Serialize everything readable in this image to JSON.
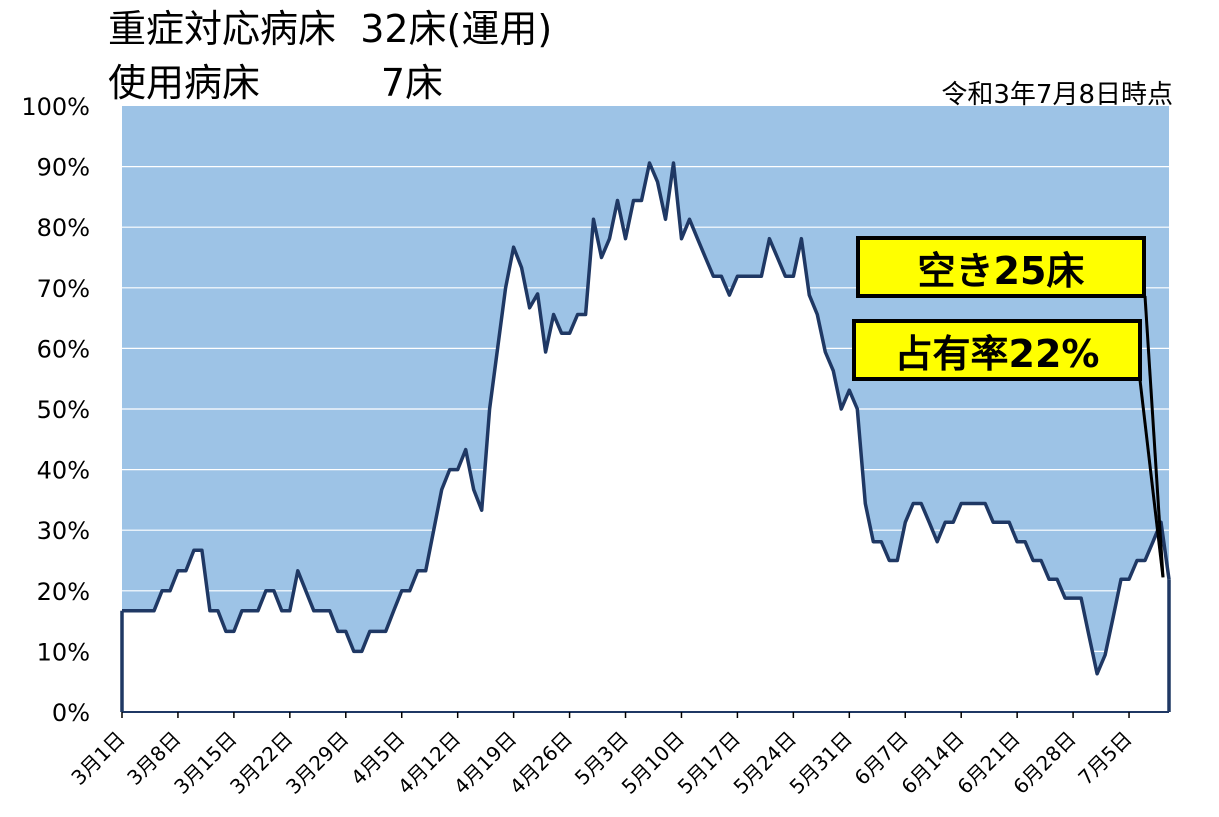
{
  "header": {
    "line1_label": "重症対応病床",
    "line1_value": "32床(運用)",
    "line2_label": "使用病床",
    "line2_value": "7床",
    "as_of": "令和3年7月8日時点"
  },
  "callouts": {
    "vacant": "空き25床",
    "occupancy": "占有率22%"
  },
  "colors": {
    "area_fill": "#9dc3e6",
    "line": "#1f3864",
    "gridline": "#ffffff",
    "callout_bg": "#ffff00"
  },
  "chart_data": {
    "type": "area",
    "title": "",
    "xlabel": "",
    "ylabel": "",
    "ylim": [
      0,
      100
    ],
    "y_unit": "%",
    "y_ticks": [
      "0%",
      "10%",
      "20%",
      "30%",
      "40%",
      "50%",
      "60%",
      "70%",
      "80%",
      "90%",
      "100%"
    ],
    "x_tick_labels": [
      "3月1日",
      "3月8日",
      "3月15日",
      "3月22日",
      "3月29日",
      "4月5日",
      "4月12日",
      "4月19日",
      "4月26日",
      "5月3日",
      "5月10日",
      "5月17日",
      "5月24日",
      "5月31日",
      "6月7日",
      "6月14日",
      "6月21日",
      "6月28日",
      "7月5日"
    ],
    "grid": true,
    "series": [
      {
        "values": [
          16.7,
          16.7,
          16.7,
          16.7,
          16.7,
          20,
          20,
          23.3,
          23.3,
          26.7,
          26.7,
          16.7,
          16.7,
          13.3,
          13.3,
          16.7,
          16.7,
          16.7,
          20,
          20,
          16.7,
          16.7,
          23.3,
          20,
          16.7,
          16.7,
          16.7,
          13.3,
          13.3,
          10,
          10,
          13.3,
          13.3,
          13.3,
          16.7,
          20,
          20,
          23.3,
          23.3,
          30,
          36.7,
          40,
          40,
          43.3,
          36.7,
          33.3,
          50,
          60,
          70,
          76.7,
          73.3,
          66.7,
          69,
          59.4,
          65.6,
          62.5,
          62.5,
          65.6,
          65.6,
          81.3,
          75,
          78.1,
          84.4,
          78.1,
          84.4,
          84.4,
          90.6,
          87.5,
          81.3,
          90.6,
          78.1,
          81.3,
          78.1,
          75,
          71.9,
          71.9,
          68.8,
          71.9,
          71.9,
          71.9,
          71.9,
          78.1,
          75,
          71.9,
          71.9,
          78.1,
          68.8,
          65.6,
          59.4,
          56.3,
          50,
          53.1,
          50,
          34.4,
          28.1,
          28.1,
          25,
          25,
          31.3,
          34.4,
          34.4,
          31.3,
          28.1,
          31.3,
          31.3,
          34.4,
          34.4,
          34.4,
          34.4,
          31.3,
          31.3,
          31.3,
          28.1,
          28.1,
          25,
          25,
          21.9,
          21.9,
          18.8,
          18.8,
          18.8,
          12.5,
          6.3,
          9.4,
          15.6,
          21.9,
          21.9,
          25,
          25,
          28.1,
          31.3,
          21.9
        ]
      }
    ]
  }
}
